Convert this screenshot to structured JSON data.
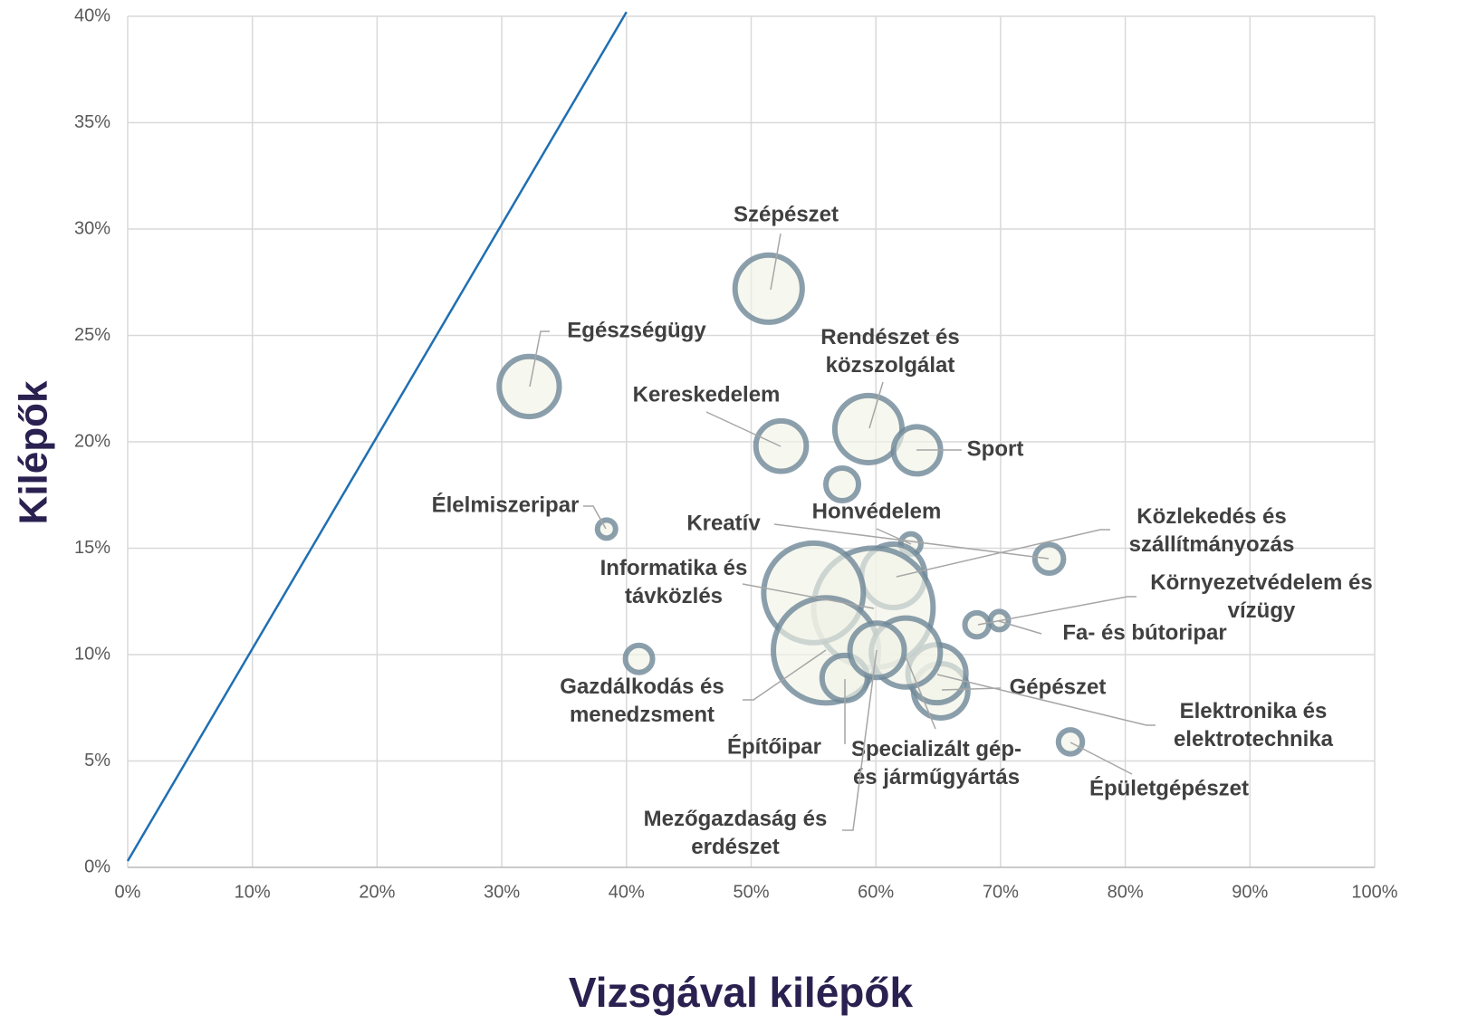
{
  "chart_data": {
    "type": "bubble",
    "xlabel": "Vizsgával kilépők",
    "ylabel": "Kilépők",
    "xlim": [
      0,
      100
    ],
    "ylim": [
      0,
      40
    ],
    "xticks": [
      {
        "value": 0,
        "label": "0%"
      },
      {
        "value": 10,
        "label": "10%"
      },
      {
        "value": 20,
        "label": "20%"
      },
      {
        "value": 30,
        "label": "30%"
      },
      {
        "value": 40,
        "label": "40%"
      },
      {
        "value": 50,
        "label": "50%"
      },
      {
        "value": 60,
        "label": "60%"
      },
      {
        "value": 70,
        "label": "70%"
      },
      {
        "value": 80,
        "label": "80%"
      },
      {
        "value": 90,
        "label": "90%"
      },
      {
        "value": 100,
        "label": "100%"
      }
    ],
    "yticks": [
      {
        "value": 0,
        "label": "0%"
      },
      {
        "value": 5,
        "label": "5%"
      },
      {
        "value": 10,
        "label": "10%"
      },
      {
        "value": 15,
        "label": "15%"
      },
      {
        "value": 20,
        "label": "20%"
      },
      {
        "value": 25,
        "label": "25%"
      },
      {
        "value": 30,
        "label": "30%"
      },
      {
        "value": 35,
        "label": "35%"
      },
      {
        "value": 40,
        "label": "40%"
      }
    ],
    "grid": true,
    "color": "#6e8797",
    "fill": "#f1f3e6",
    "names": [
      "Szépészet",
      "Egészségügy",
      "Kereskedelem",
      "Rendészet és közszolgálat",
      "Sport",
      null,
      "Élelmiszeripar",
      "Kreatív",
      "Honvédelem",
      "Közlekedés és szállítmányozás",
      "Informatika és távközlés",
      null,
      "Környezetvédelem és vízügy",
      "Fa- és bútoripar",
      "Gépészet",
      "Elektronika és elektrotechnika",
      "Gazdálkodás és menedzsment",
      "Építőipar",
      "Specializált gép- és járműgyártás",
      "Mezőgazdaság és erdészet",
      "Épületgépészet",
      null
    ],
    "x": [
      51.4,
      32.2,
      52.4,
      59.4,
      63.3,
      57.3,
      38.4,
      73.9,
      62.8,
      61.4,
      59.8,
      55.0,
      68.1,
      69.9,
      65.2,
      64.9,
      56.0,
      57.5,
      62.4,
      60.1,
      75.6,
      41.0
    ],
    "values": [
      27.2,
      22.6,
      19.8,
      20.6,
      19.6,
      18.0,
      15.9,
      14.5,
      15.2,
      13.7,
      12.2,
      12.9,
      11.4,
      11.6,
      8.3,
      9.1,
      10.2,
      8.9,
      10.1,
      10.2,
      5.9,
      9.8
    ],
    "sizes": [
      55,
      44,
      31,
      55,
      27,
      13,
      4,
      10,
      5,
      49,
      174,
      121,
      7,
      4,
      36,
      41,
      135,
      25,
      58,
      36,
      7,
      9
    ],
    "reference_line": {
      "color": "#1f6fb2",
      "x": [
        0,
        40
      ],
      "y": [
        0.3,
        40.2
      ]
    }
  }
}
